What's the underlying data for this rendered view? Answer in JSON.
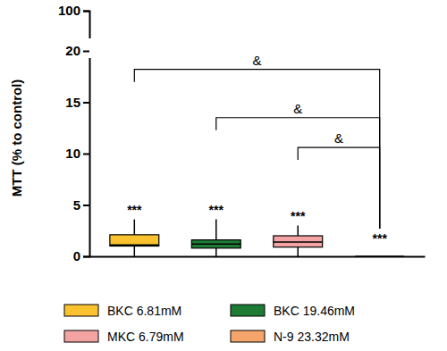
{
  "chart_data": {
    "type": "box",
    "y_label": "MTT (% to control)",
    "categories": [
      "BKC 6.81mM",
      "BKC 19.46mM",
      "MKC 6.79mM",
      "N-9 23.32mM"
    ],
    "colors": [
      "#F9C22E",
      "#1E7B34",
      "#F4A3A3",
      "#F6A56A"
    ],
    "min": [
      0,
      0,
      0,
      0
    ],
    "q1": [
      1.0,
      0.8,
      0.9,
      0
    ],
    "median": [
      1.1,
      1.2,
      1.4,
      0
    ],
    "q3": [
      2.1,
      1.6,
      2.0,
      0
    ],
    "max": [
      3.6,
      3.6,
      3.0,
      0
    ],
    "ylim": [
      0,
      100
    ],
    "y_break": 20,
    "yticks": [
      0,
      5,
      10,
      15,
      20,
      100
    ],
    "tick_labels": "y",
    "legend": "bottom",
    "annotations": [
      {
        "text": "***",
        "category": 0,
        "y": 4.1
      },
      {
        "text": "***",
        "category": 1,
        "y": 4.1
      },
      {
        "text": "***",
        "category": 2,
        "y": 3.5
      },
      {
        "text": "***",
        "category": 3,
        "y": 1.3
      }
    ],
    "brackets": [
      {
        "text": "&",
        "from": 0,
        "to": 3,
        "y": 18.2
      },
      {
        "text": "&",
        "from": 1,
        "to": 3,
        "y": 13.5
      },
      {
        "text": "&",
        "from": 2,
        "to": 3,
        "y": 10.6
      }
    ]
  }
}
